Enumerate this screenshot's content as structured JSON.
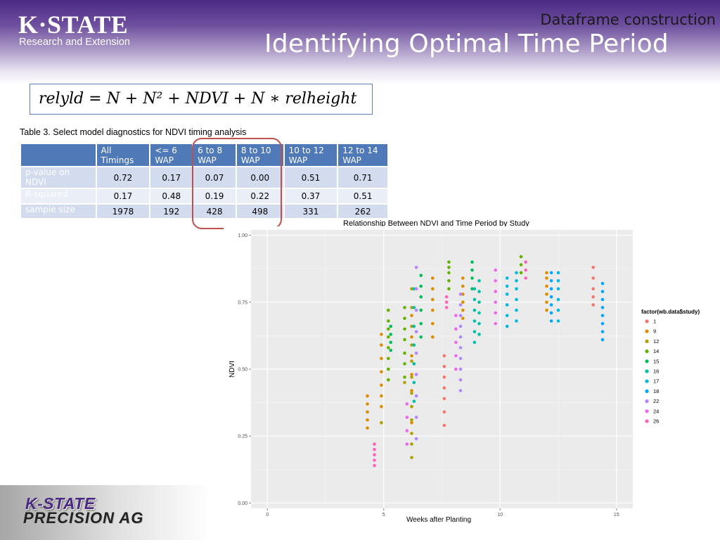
{
  "header": {
    "logo_main": "K·STATE",
    "logo_sub": "Research and Extension",
    "subtitle": "Dataframe construction",
    "title": "Identifying Optimal Time Period"
  },
  "formula": "relyld = N + N² + NDVI + N ∗ relheight",
  "table": {
    "caption": "Table 3. Select model diagnostics for NDVI timing analysis",
    "columns": [
      [
        "All",
        "Timings"
      ],
      [
        "<= 6",
        "WAP"
      ],
      [
        "6 to 8",
        "WAP"
      ],
      [
        "8 to 10",
        "WAP"
      ],
      [
        "10 to 12",
        "WAP"
      ],
      [
        "12 to 14",
        "WAP"
      ]
    ],
    "rows": [
      {
        "label": [
          "p-value on",
          "NDVI"
        ],
        "values": [
          "0.72",
          "0.17",
          "0.07",
          "0.00",
          "0.51",
          "0.71"
        ]
      },
      {
        "label": [
          "R-squared"
        ],
        "values": [
          "0.17",
          "0.48",
          "0.19",
          "0.22",
          "0.37",
          "0.51"
        ]
      },
      {
        "label": [
          "sample size"
        ],
        "values": [
          "1978",
          "192",
          "428",
          "498",
          "331",
          "262"
        ]
      }
    ]
  },
  "colors": {
    "banner": "#4b2a84",
    "table_header": "#4f7ab7",
    "highlight": "#c0504d"
  },
  "footer": {
    "logo_line1": "K-STATE",
    "logo_line2": "PRECISION AG"
  },
  "chart_data": {
    "type": "scatter",
    "title": "Relationship Between NDVI and Time Period by Study",
    "xlabel": "Weeks after Planting",
    "ylabel": "NDVI",
    "xlim": [
      -0.7,
      15.7
    ],
    "ylim": [
      -0.02,
      1.02
    ],
    "x_ticks": [
      0,
      5,
      10,
      15
    ],
    "y_ticks": [
      "0.00",
      "0.25",
      "0.50",
      "0.75",
      "1.00"
    ],
    "legend_title": "factor(wb.data$study)",
    "legend_position": "right",
    "grid": true,
    "series": [
      {
        "name": "1",
        "color": "#F8766D",
        "points": [
          [
            7.6,
            0.29
          ],
          [
            7.6,
            0.34
          ],
          [
            7.6,
            0.39
          ],
          [
            7.6,
            0.43
          ],
          [
            7.6,
            0.47
          ],
          [
            7.6,
            0.51
          ],
          [
            7.6,
            0.55
          ],
          [
            14.0,
            0.74
          ],
          [
            14.0,
            0.77
          ],
          [
            14.0,
            0.8
          ],
          [
            14.0,
            0.84
          ],
          [
            14.0,
            0.88
          ]
        ]
      },
      {
        "name": "9",
        "color": "#DB8E00",
        "points": [
          [
            4.3,
            0.28
          ],
          [
            4.3,
            0.31
          ],
          [
            4.3,
            0.34
          ],
          [
            4.3,
            0.37
          ],
          [
            4.3,
            0.4
          ],
          [
            4.9,
            0.36
          ],
          [
            4.9,
            0.4
          ],
          [
            4.9,
            0.44
          ],
          [
            4.9,
            0.49
          ],
          [
            4.9,
            0.54
          ],
          [
            4.9,
            0.59
          ],
          [
            4.9,
            0.63
          ],
          [
            6.2,
            0.3
          ],
          [
            6.2,
            0.36
          ],
          [
            6.2,
            0.42
          ],
          [
            6.2,
            0.48
          ],
          [
            6.2,
            0.55
          ],
          [
            6.2,
            0.62
          ],
          [
            6.2,
            0.7
          ],
          [
            7.1,
            0.62
          ],
          [
            7.1,
            0.67
          ],
          [
            7.1,
            0.72
          ],
          [
            7.1,
            0.76
          ],
          [
            7.1,
            0.8
          ],
          [
            7.1,
            0.84
          ],
          [
            8.4,
            0.69
          ],
          [
            8.4,
            0.72
          ],
          [
            8.4,
            0.75
          ],
          [
            8.4,
            0.78
          ],
          [
            8.4,
            0.81
          ],
          [
            8.4,
            0.84
          ],
          [
            12.0,
            0.72
          ],
          [
            12.0,
            0.75
          ],
          [
            12.0,
            0.78
          ],
          [
            12.0,
            0.81
          ],
          [
            12.0,
            0.84
          ],
          [
            12.0,
            0.86
          ]
        ]
      },
      {
        "name": "12",
        "color": "#AEA200",
        "points": [
          [
            4.9,
            0.3
          ],
          [
            5.9,
            0.45
          ],
          [
            6.2,
            0.17
          ],
          [
            6.2,
            0.22
          ],
          [
            6.2,
            0.26
          ],
          [
            6.2,
            0.31
          ],
          [
            6.2,
            0.36
          ],
          [
            6.2,
            0.41
          ],
          [
            6.2,
            0.47
          ],
          [
            6.2,
            0.53
          ],
          [
            6.2,
            0.59
          ],
          [
            6.2,
            0.66
          ],
          [
            6.2,
            0.73
          ],
          [
            6.2,
            0.8
          ]
        ]
      },
      {
        "name": "14",
        "color": "#64B200",
        "points": [
          [
            5.2,
            0.46
          ],
          [
            5.2,
            0.5
          ],
          [
            5.2,
            0.54
          ],
          [
            5.2,
            0.58
          ],
          [
            5.2,
            0.62
          ],
          [
            5.2,
            0.65
          ],
          [
            5.2,
            0.68
          ],
          [
            5.2,
            0.72
          ],
          [
            5.9,
            0.47
          ],
          [
            5.9,
            0.52
          ],
          [
            5.9,
            0.56
          ],
          [
            5.9,
            0.61
          ],
          [
            5.9,
            0.65
          ],
          [
            5.9,
            0.69
          ],
          [
            5.9,
            0.73
          ],
          [
            7.8,
            0.8
          ],
          [
            7.8,
            0.83
          ],
          [
            7.8,
            0.86
          ],
          [
            7.8,
            0.88
          ],
          [
            7.8,
            0.9
          ],
          [
            10.9,
            0.86
          ],
          [
            10.9,
            0.89
          ],
          [
            10.9,
            0.92
          ]
        ]
      },
      {
        "name": "15",
        "color": "#00BD5C",
        "points": [
          [
            5.3,
            0.57
          ],
          [
            5.3,
            0.6
          ],
          [
            5.3,
            0.63
          ],
          [
            5.3,
            0.66
          ],
          [
            6.6,
            0.62
          ],
          [
            6.6,
            0.67
          ],
          [
            6.6,
            0.72
          ],
          [
            6.6,
            0.77
          ],
          [
            6.6,
            0.81
          ],
          [
            6.6,
            0.85
          ],
          [
            8.8,
            0.8
          ],
          [
            8.8,
            0.84
          ],
          [
            8.8,
            0.87
          ],
          [
            8.8,
            0.9
          ]
        ]
      },
      {
        "name": "16",
        "color": "#00C1A7",
        "points": [
          [
            6.3,
            0.38
          ],
          [
            6.3,
            0.45
          ],
          [
            6.3,
            0.52
          ],
          [
            6.3,
            0.59
          ],
          [
            6.3,
            0.66
          ],
          [
            6.3,
            0.73
          ],
          [
            6.3,
            0.8
          ],
          [
            8.9,
            0.6
          ],
          [
            8.9,
            0.64
          ],
          [
            8.9,
            0.68
          ],
          [
            8.9,
            0.72
          ],
          [
            8.9,
            0.76
          ],
          [
            8.9,
            0.8
          ],
          [
            9.1,
            0.63
          ],
          [
            9.1,
            0.67
          ],
          [
            9.1,
            0.71
          ],
          [
            9.1,
            0.75
          ],
          [
            9.1,
            0.79
          ],
          [
            9.1,
            0.83
          ]
        ]
      },
      {
        "name": "17",
        "color": "#00BADE",
        "points": [
          [
            10.3,
            0.66
          ],
          [
            10.3,
            0.7
          ],
          [
            10.3,
            0.74
          ],
          [
            10.3,
            0.78
          ],
          [
            10.3,
            0.81
          ],
          [
            10.3,
            0.84
          ],
          [
            10.7,
            0.68
          ],
          [
            10.7,
            0.72
          ],
          [
            10.7,
            0.76
          ],
          [
            10.7,
            0.8
          ],
          [
            10.7,
            0.83
          ],
          [
            10.7,
            0.86
          ],
          [
            12.5,
            0.68
          ],
          [
            12.5,
            0.72
          ],
          [
            12.5,
            0.76
          ],
          [
            12.5,
            0.8
          ],
          [
            12.5,
            0.83
          ],
          [
            12.5,
            0.86
          ]
        ]
      },
      {
        "name": "18",
        "color": "#00A6FF",
        "points": [
          [
            12.2,
            0.68
          ],
          [
            12.2,
            0.71
          ],
          [
            12.2,
            0.74
          ],
          [
            12.2,
            0.77
          ],
          [
            12.2,
            0.8
          ],
          [
            12.2,
            0.83
          ],
          [
            12.2,
            0.86
          ],
          [
            14.4,
            0.61
          ],
          [
            14.4,
            0.64
          ],
          [
            14.4,
            0.67
          ],
          [
            14.4,
            0.7
          ],
          [
            14.4,
            0.73
          ],
          [
            14.4,
            0.76
          ],
          [
            14.4,
            0.79
          ],
          [
            14.4,
            0.82
          ]
        ]
      },
      {
        "name": "22",
        "color": "#B385FF",
        "points": [
          [
            6.4,
            0.24
          ],
          [
            6.4,
            0.32
          ],
          [
            6.4,
            0.4
          ],
          [
            6.4,
            0.48
          ],
          [
            6.4,
            0.56
          ],
          [
            6.4,
            0.64
          ],
          [
            6.4,
            0.72
          ],
          [
            6.4,
            0.8
          ],
          [
            6.4,
            0.88
          ],
          [
            8.3,
            0.42
          ],
          [
            8.3,
            0.46
          ],
          [
            8.3,
            0.5
          ],
          [
            8.3,
            0.54
          ],
          [
            8.3,
            0.58
          ],
          [
            8.3,
            0.62
          ],
          [
            8.3,
            0.66
          ],
          [
            8.3,
            0.7
          ],
          [
            8.3,
            0.74
          ],
          [
            8.3,
            0.78
          ]
        ]
      },
      {
        "name": "24",
        "color": "#EF67EB",
        "points": [
          [
            6.0,
            0.22
          ],
          [
            6.0,
            0.27
          ],
          [
            6.0,
            0.32
          ],
          [
            6.0,
            0.37
          ],
          [
            8.1,
            0.5
          ],
          [
            8.1,
            0.55
          ],
          [
            8.1,
            0.6
          ],
          [
            8.1,
            0.65
          ],
          [
            8.1,
            0.7
          ],
          [
            9.8,
            0.67
          ],
          [
            9.8,
            0.71
          ],
          [
            9.8,
            0.75
          ],
          [
            9.8,
            0.79
          ],
          [
            9.8,
            0.83
          ],
          [
            9.8,
            0.87
          ]
        ]
      },
      {
        "name": "26",
        "color": "#FF63B6",
        "points": [
          [
            4.6,
            0.14
          ],
          [
            4.6,
            0.16
          ],
          [
            4.6,
            0.18
          ],
          [
            4.6,
            0.2
          ],
          [
            4.6,
            0.22
          ],
          [
            7.7,
            0.73
          ],
          [
            7.7,
            0.75
          ],
          [
            7.7,
            0.77
          ],
          [
            11.1,
            0.84
          ],
          [
            11.1,
            0.87
          ],
          [
            11.1,
            0.9
          ]
        ]
      }
    ]
  }
}
